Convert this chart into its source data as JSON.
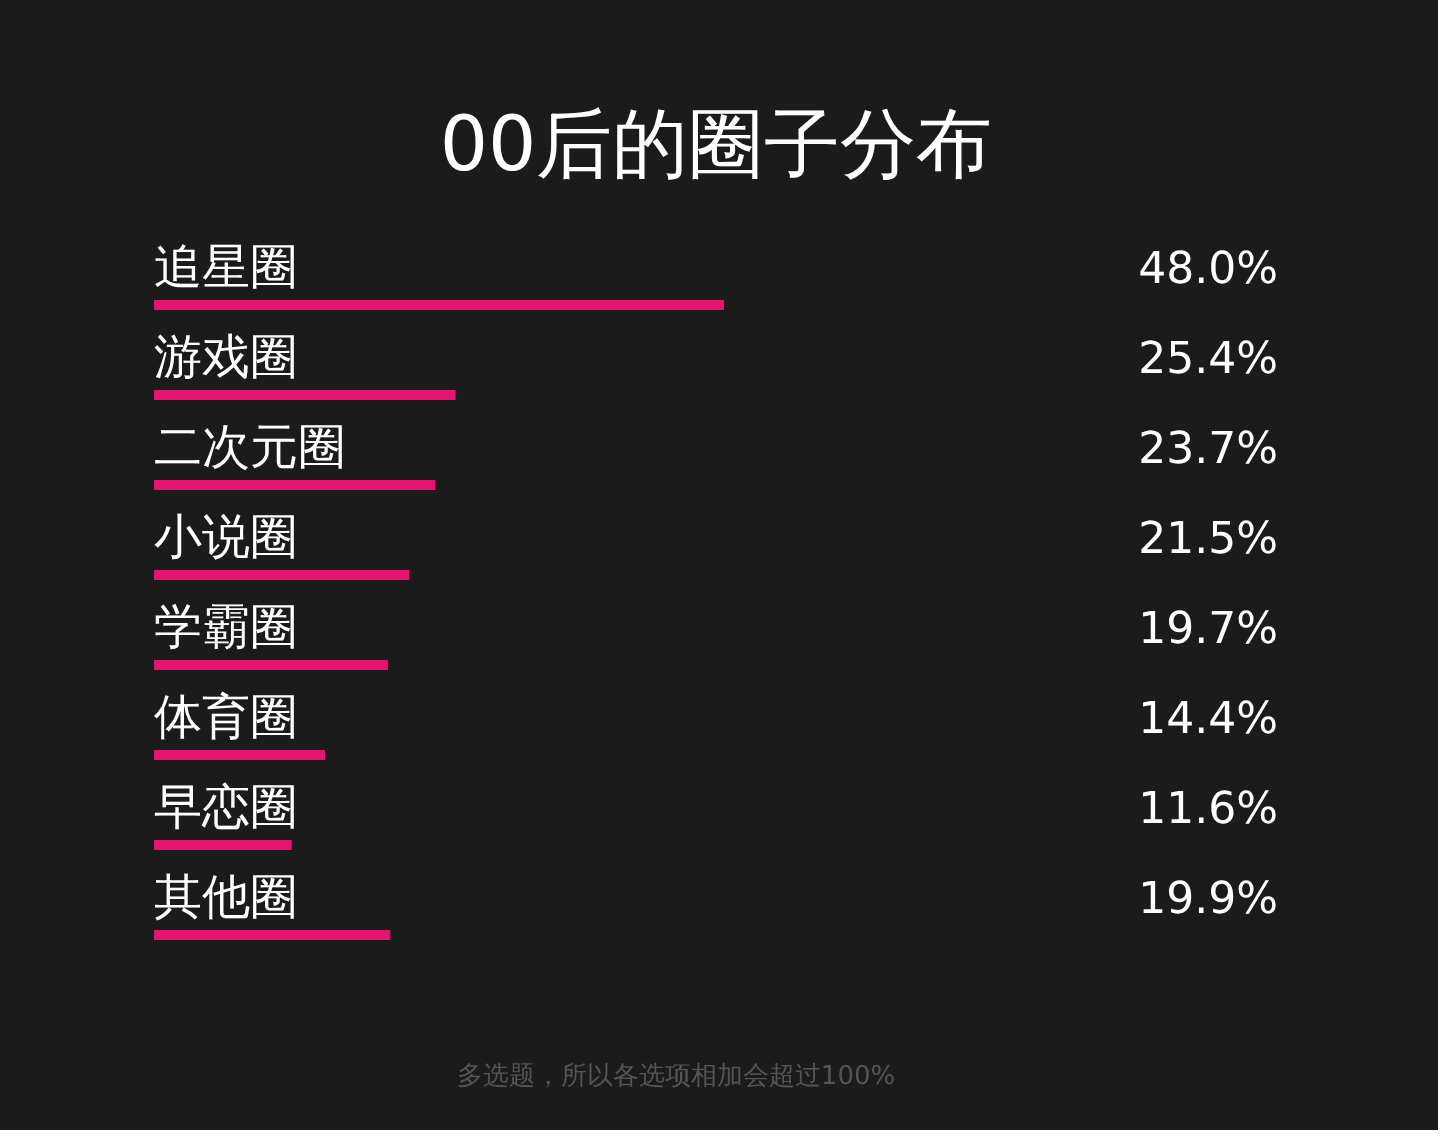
{
  "chart_data": {
    "type": "bar",
    "orientation": "horizontal",
    "title": "00后的圈子分布",
    "categories": [
      "追星圈",
      "游戏圈",
      "二次元圈",
      "小说圈",
      "学霸圈",
      "体育圈",
      "早恋圈",
      "其他圈"
    ],
    "values": [
      48.0,
      25.4,
      23.7,
      21.5,
      19.7,
      14.4,
      11.6,
      19.9
    ],
    "value_labels": [
      "48.0%",
      "25.4%",
      "23.7%",
      "21.5%",
      "19.7%",
      "14.4%",
      "11.6%",
      "19.9%"
    ],
    "color": "#e5156e",
    "annotations": [
      "多选题，所以各选项相加会超过100%"
    ]
  }
}
